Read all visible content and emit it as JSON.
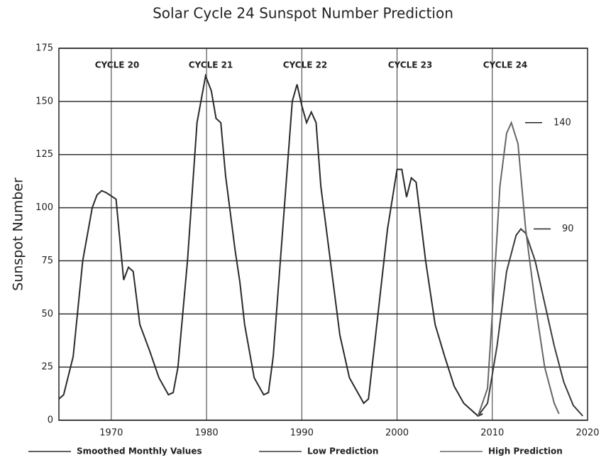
{
  "chart_data": {
    "type": "line",
    "title": "Solar Cycle 24 Sunspot Number Prediction",
    "y_label": "Sunspot Number",
    "xlim": [
      1964.5,
      2020
    ],
    "xticks": [
      1970,
      1980,
      1990,
      2000,
      2010,
      2020
    ],
    "ylim": [
      0,
      175
    ],
    "yticks": [
      0,
      25,
      50,
      75,
      100,
      125,
      150,
      175
    ],
    "grid": true,
    "annotations": [
      "CYCLE 20",
      "CYCLE 21",
      "CYCLE 22",
      "CYCLE 23",
      "CYCLE 24"
    ],
    "peak_labels": [
      140,
      90
    ],
    "series": [
      {
        "name": "Smoothed Monthly Values",
        "color": "#2a2a2a",
        "x": [
          1964.5,
          1965,
          1966,
          1967,
          1968,
          1968.5,
          1969,
          1969.5,
          1970.5,
          1971,
          1971.3,
          1971.8,
          1972.3,
          1973,
          1974,
          1975,
          1976,
          1976.5,
          1977,
          1978,
          1979,
          1979.9,
          1980.5,
          1981,
          1981.5,
          1982,
          1983,
          1983.5,
          1984,
          1985,
          1986,
          1986.5,
          1987,
          1988,
          1989,
          1989.5,
          1990,
          1990.5,
          1991,
          1991.5,
          1992,
          1993,
          1994,
          1995,
          1996.5,
          1997,
          1998,
          1999,
          2000,
          2000.5,
          2001,
          2001.5,
          2002,
          2003,
          2004,
          2005,
          2006,
          2007,
          2008.5,
          2009
        ],
        "values": [
          10,
          12,
          30,
          75,
          100,
          106,
          108,
          107,
          104,
          80,
          66,
          72,
          70,
          45,
          33,
          20,
          12,
          13,
          25,
          75,
          140,
          162,
          155,
          142,
          140,
          115,
          80,
          65,
          45,
          20,
          12,
          13,
          30,
          90,
          150,
          158,
          148,
          140,
          145,
          140,
          110,
          75,
          40,
          20,
          8,
          10,
          50,
          90,
          118,
          118,
          105,
          114,
          112,
          75,
          45,
          30,
          16,
          8,
          2,
          3
        ]
      },
      {
        "name": "Low Prediction",
        "color": "#3a3a3a",
        "x": [
          2008.5,
          2009.5,
          2010.5,
          2011.5,
          2012.5,
          2013,
          2013.5,
          2014.5,
          2015.5,
          2016.5,
          2017.5,
          2018.5,
          2019.5
        ],
        "values": [
          2,
          8,
          35,
          70,
          87,
          90,
          88,
          75,
          55,
          35,
          18,
          7,
          2
        ]
      },
      {
        "name": "High Prediction",
        "color": "#666666",
        "x": [
          2008.5,
          2009.5,
          2010,
          2010.8,
          2011.5,
          2012,
          2012.7,
          2013.5,
          2014.5,
          2015.5,
          2016.5,
          2017
        ],
        "values": [
          2,
          15,
          50,
          110,
          135,
          140,
          130,
          90,
          55,
          25,
          8,
          3
        ]
      }
    ]
  }
}
